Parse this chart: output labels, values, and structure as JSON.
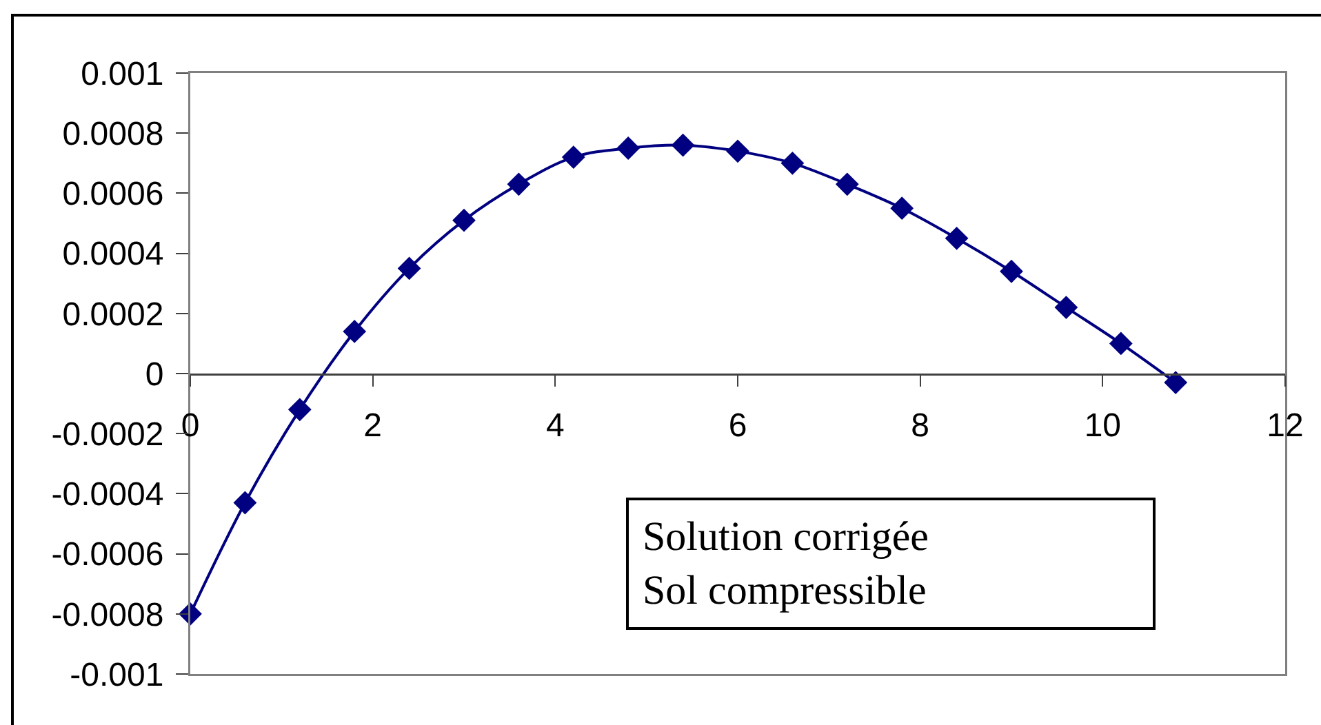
{
  "chart_data": {
    "type": "line",
    "x": [
      0,
      0.6,
      1.2,
      1.8,
      2.4,
      3.0,
      3.6,
      4.2,
      4.8,
      5.4,
      6.0,
      6.6,
      7.2,
      7.8,
      8.4,
      9.0,
      9.6,
      10.2,
      10.8
    ],
    "series": [
      {
        "color": "#000080",
        "values": [
          -0.0008,
          -0.00043,
          -0.00012,
          0.00014,
          0.00035,
          0.00051,
          0.00063,
          0.00072,
          0.00075,
          0.00076,
          0.00074,
          0.0007,
          0.00063,
          0.00055,
          0.00045,
          0.00034,
          0.00022,
          0.0001,
          -3e-05
        ]
      }
    ],
    "xlim": [
      0,
      12
    ],
    "xticks": [
      0,
      2,
      4,
      6,
      8,
      10,
      12
    ],
    "ylim": [
      -0.001,
      0.001
    ],
    "yticks": [
      -0.001,
      -0.0008,
      -0.0006,
      -0.0004,
      -0.0002,
      0,
      0.0002,
      0.0004,
      0.0006,
      0.0008,
      0.001
    ],
    "marker": "diamond",
    "line_style": "solid",
    "annotations": [
      "Solution corrigée\nSol compressible"
    ]
  }
}
